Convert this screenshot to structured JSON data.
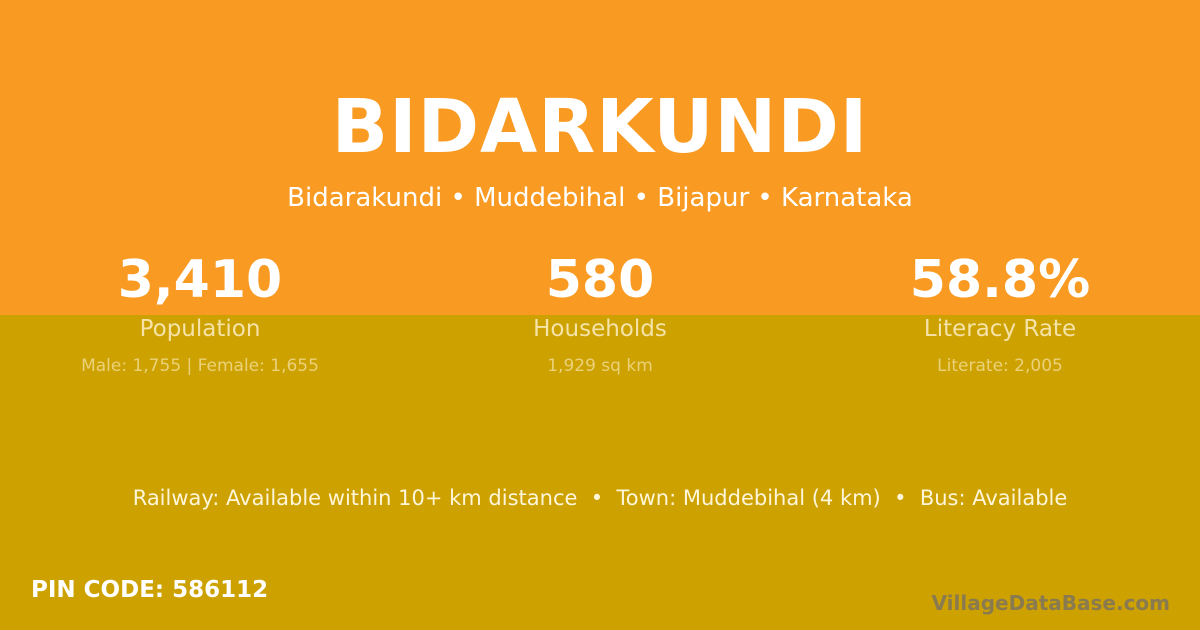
{
  "title": "BIDARKUNDI",
  "subtitle": "Bidarakundi • Muddebihal • Bijapur • Karnataka",
  "stats": [
    {
      "value": "3,410",
      "label": "Population",
      "detail": "Male: 1,755 | Female: 1,655"
    },
    {
      "value": "580",
      "label": "Households",
      "detail": "1,929 sq km"
    },
    {
      "value": "58.8%",
      "label": "Literacy Rate",
      "detail": "Literate: 2,005"
    }
  ],
  "info": "Railway: Available within 10+ km distance  •  Town: Muddebihal (4 km)  •  Bus: Available",
  "pin": "PIN CODE: 586112",
  "brand": "VillageDataBase.com",
  "colors": {
    "top": "#F99A22",
    "bottom": "#CCA100"
  }
}
